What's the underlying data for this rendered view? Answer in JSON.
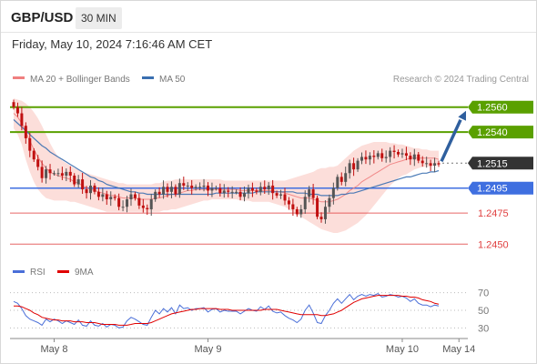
{
  "header": {
    "pair": "GBP/USD",
    "timeframe": "30 MIN"
  },
  "datetime": "Friday, May 10, 2024 7:16:46 AM CET",
  "colors": {
    "ma20": "#f08080",
    "ma50": "#3a6fb0",
    "resistance": "#5aa000",
    "pivot": "#3f6fe0",
    "support": "#e04040",
    "current": "#333333",
    "rsi": "#4a6fd8",
    "rsi_ma": "#e00000",
    "candle_up": "#555555",
    "candle_down": "#c01010",
    "band_fill": "#fbd8d4"
  },
  "chart_data": [
    {
      "type": "candlestick",
      "legend": {
        "items": [
          {
            "label": "MA 20 + Bollinger Bands",
            "color": "#f08080"
          },
          {
            "label": "MA 50",
            "color": "#3a6fb0"
          }
        ],
        "placement": "top-left"
      },
      "credit": "Research © 2024 Trading Central",
      "ylim": [
        1.244,
        1.257
      ],
      "levels": [
        {
          "label": "1.2560",
          "value": 1.256,
          "kind": "resistance"
        },
        {
          "label": "1.2540",
          "value": 1.254,
          "kind": "resistance"
        },
        {
          "label": "1.2515",
          "value": 1.2515,
          "kind": "current"
        },
        {
          "label": "1.2495",
          "value": 1.2495,
          "kind": "pivot"
        },
        {
          "label": "1.2475",
          "value": 1.2475,
          "kind": "support"
        },
        {
          "label": "1.2450",
          "value": 1.245,
          "kind": "support"
        }
      ],
      "x_ticks": [
        {
          "label": "May 8",
          "index": 10
        },
        {
          "label": "May 9",
          "index": 48
        },
        {
          "label": "May 10",
          "index": 96
        },
        {
          "label": "May 14",
          "index": 110
        }
      ],
      "close": [
        1.256,
        1.2555,
        1.2545,
        1.2535,
        1.2525,
        1.2518,
        1.2512,
        1.2503,
        1.251,
        1.2507,
        1.2507,
        1.2507,
        1.2505,
        1.2508,
        1.2505,
        1.2498,
        1.2502,
        1.2494,
        1.2491,
        1.2497,
        1.2492,
        1.2488,
        1.249,
        1.2486,
        1.2488,
        1.2487,
        1.248,
        1.248,
        1.2486,
        1.249,
        1.2487,
        1.2481,
        1.2479,
        1.2478,
        1.2486,
        1.2492,
        1.249,
        1.2496,
        1.2492,
        1.2496,
        1.249,
        1.2499,
        1.2497,
        1.2497,
        1.2495,
        1.2496,
        1.2496,
        1.2497,
        1.2493,
        1.2495,
        1.2495,
        1.2491,
        1.2493,
        1.2492,
        1.2492,
        1.2492,
        1.2488,
        1.2491,
        1.2495,
        1.2493,
        1.2492,
        1.2496,
        1.2494,
        1.2497,
        1.2491,
        1.2489,
        1.249,
        1.2485,
        1.2482,
        1.2478,
        1.2474,
        1.2478,
        1.2488,
        1.2494,
        1.2487,
        1.2472,
        1.247,
        1.248,
        1.2487,
        1.2495,
        1.2504,
        1.25,
        1.2507,
        1.2515,
        1.251,
        1.2517,
        1.252,
        1.2518,
        1.2521,
        1.252,
        1.2523,
        1.2519,
        1.252,
        1.2525,
        1.2524,
        1.2522,
        1.2523,
        1.2521,
        1.2518,
        1.2522,
        1.2517,
        1.2515,
        1.2515,
        1.2513,
        1.2515,
        1.2514
      ],
      "ma20": [
        1.2555,
        1.2552,
        1.2547,
        1.254,
        1.2533,
        1.2526,
        1.252,
        1.2515,
        1.2511,
        1.2508,
        1.2506,
        1.2505,
        1.2504,
        1.2503,
        1.2502,
        1.25,
        1.2499,
        1.2497,
        1.2495,
        1.2494,
        1.2493,
        1.2492,
        1.2491,
        1.249,
        1.2489,
        1.2489,
        1.2488,
        1.2487,
        1.2487,
        1.2487,
        1.2487,
        1.2486,
        1.2486,
        1.2486,
        1.2486,
        1.2487,
        1.2487,
        1.2488,
        1.2489,
        1.249,
        1.249,
        1.2491,
        1.2492,
        1.2493,
        1.2493,
        1.2494,
        1.2494,
        1.2494,
        1.2494,
        1.2494,
        1.2494,
        1.2494,
        1.2494,
        1.2494,
        1.2494,
        1.2494,
        1.2493,
        1.2493,
        1.2493,
        1.2493,
        1.2493,
        1.2493,
        1.2493,
        1.2493,
        1.2493,
        1.2492,
        1.2492,
        1.2491,
        1.249,
        1.2489,
        1.2488,
        1.2487,
        1.2487,
        1.2487,
        1.2486,
        1.2485,
        1.2484,
        1.2484,
        1.2484,
        1.2485,
        1.2486,
        1.2488,
        1.249,
        1.2493,
        1.2495,
        1.2497,
        1.25,
        1.2502,
        1.2504,
        1.2506,
        1.2508,
        1.251,
        1.2512,
        1.2514,
        1.2515,
        1.2516,
        1.2517,
        1.2518,
        1.2519,
        1.2519,
        1.2519,
        1.2519,
        1.2519,
        1.2519,
        1.2519,
        1.2518
      ],
      "bb_upper": [
        1.2567,
        1.2566,
        1.2565,
        1.2563,
        1.256,
        1.2556,
        1.2551,
        1.2545,
        1.2538,
        1.2531,
        1.2525,
        1.252,
        1.2517,
        1.2515,
        1.2513,
        1.2511,
        1.251,
        1.2508,
        1.2507,
        1.2506,
        1.2505,
        1.2504,
        1.2503,
        1.2502,
        1.2501,
        1.25,
        1.2499,
        1.2499,
        1.2498,
        1.2498,
        1.2498,
        1.2498,
        1.2498,
        1.2498,
        1.2498,
        1.2499,
        1.2499,
        1.25,
        1.2501,
        1.2501,
        1.2502,
        1.2502,
        1.2502,
        1.2502,
        1.2502,
        1.2502,
        1.2502,
        1.2502,
        1.2502,
        1.2502,
        1.2502,
        1.2502,
        1.2501,
        1.2501,
        1.2501,
        1.2501,
        1.2501,
        1.2501,
        1.2501,
        1.2501,
        1.2501,
        1.2501,
        1.2501,
        1.2501,
        1.2501,
        1.2501,
        1.2501,
        1.2501,
        1.2502,
        1.2503,
        1.2504,
        1.2505,
        1.2506,
        1.2507,
        1.2508,
        1.251,
        1.2511,
        1.2511,
        1.2512,
        1.2512,
        1.2513,
        1.2516,
        1.2519,
        1.2522,
        1.2525,
        1.2527,
        1.2529,
        1.253,
        1.2531,
        1.2532,
        1.2532,
        1.2532,
        1.2532,
        1.2531,
        1.2531,
        1.253,
        1.253,
        1.2529,
        1.2528,
        1.2527,
        1.2527,
        1.2526,
        1.2526,
        1.2525,
        1.2525,
        1.2525
      ],
      "bb_lower": [
        1.2543,
        1.2538,
        1.253,
        1.2518,
        1.2508,
        1.25,
        1.2494,
        1.249,
        1.2487,
        1.2486,
        1.2485,
        1.2485,
        1.2485,
        1.2485,
        1.2484,
        1.2484,
        1.2483,
        1.2482,
        1.2481,
        1.248,
        1.2479,
        1.2478,
        1.2477,
        1.2476,
        1.2476,
        1.2476,
        1.2476,
        1.2476,
        1.2476,
        1.2476,
        1.2476,
        1.2476,
        1.2476,
        1.2476,
        1.2476,
        1.2476,
        1.2476,
        1.2477,
        1.2477,
        1.2478,
        1.2478,
        1.2479,
        1.248,
        1.2481,
        1.2482,
        1.2483,
        1.2484,
        1.2485,
        1.2485,
        1.2486,
        1.2486,
        1.2486,
        1.2486,
        1.2486,
        1.2486,
        1.2486,
        1.2485,
        1.2485,
        1.2485,
        1.2484,
        1.2484,
        1.2484,
        1.2484,
        1.2484,
        1.2483,
        1.2482,
        1.2481,
        1.248,
        1.2478,
        1.2476,
        1.2474,
        1.2472,
        1.247,
        1.2468,
        1.2466,
        1.2464,
        1.2462,
        1.2461,
        1.246,
        1.2459,
        1.2459,
        1.246,
        1.2461,
        1.2463,
        1.2465,
        1.2467,
        1.247,
        1.2473,
        1.2477,
        1.2481,
        1.2485,
        1.2489,
        1.2493,
        1.2497,
        1.25,
        1.2503,
        1.2505,
        1.2506,
        1.2508,
        1.251,
        1.2511,
        1.2512,
        1.2512,
        1.2512,
        1.2513,
        1.2513
      ],
      "ma50": [
        1.255,
        1.2547,
        1.2544,
        1.2541,
        1.2538,
        1.2535,
        1.2532,
        1.2529,
        1.2527,
        1.2524,
        1.2522,
        1.252,
        1.2518,
        1.2516,
        1.2514,
        1.2512,
        1.251,
        1.2508,
        1.2506,
        1.2504,
        1.2503,
        1.2501,
        1.25,
        1.2498,
        1.2497,
        1.2496,
        1.2495,
        1.2494,
        1.2493,
        1.2492,
        1.2492,
        1.2491,
        1.2491,
        1.249,
        1.249,
        1.249,
        1.249,
        1.249,
        1.249,
        1.249,
        1.249,
        1.249,
        1.249,
        1.249,
        1.249,
        1.249,
        1.249,
        1.249,
        1.249,
        1.249,
        1.2491,
        1.2491,
        1.2491,
        1.2491,
        1.2491,
        1.2491,
        1.2491,
        1.2491,
        1.2491,
        1.2491,
        1.2492,
        1.2492,
        1.2492,
        1.2492,
        1.2492,
        1.2492,
        1.2492,
        1.2492,
        1.2492,
        1.2492,
        1.2491,
        1.2491,
        1.2491,
        1.249,
        1.249,
        1.249,
        1.2489,
        1.2489,
        1.2489,
        1.2489,
        1.2489,
        1.249,
        1.249,
        1.2491,
        1.2491,
        1.2492,
        1.2493,
        1.2494,
        1.2495,
        1.2496,
        1.2497,
        1.2498,
        1.2499,
        1.25,
        1.2501,
        1.2502,
        1.2503,
        1.2504,
        1.2504,
        1.2505,
        1.2506,
        1.2507,
        1.2507,
        1.2508,
        1.2508,
        1.2509
      ],
      "projection": {
        "from_value": 1.2515,
        "to_value": 1.256
      }
    },
    {
      "type": "line",
      "legend": {
        "items": [
          {
            "label": "RSI",
            "color": "#4a6fd8"
          },
          {
            "label": "9MA",
            "color": "#e00000"
          }
        ],
        "placement": "top-left"
      },
      "ylim": [
        20,
        80
      ],
      "y_ticks": [
        {
          "label": "70",
          "value": 70
        },
        {
          "label": "50",
          "value": 50
        },
        {
          "label": "30",
          "value": 30
        }
      ],
      "series": [
        {
          "name": "RSI",
          "values": [
            60,
            58,
            52,
            44,
            40,
            38,
            36,
            33,
            40,
            37,
            40,
            38,
            35,
            38,
            36,
            34,
            39,
            33,
            32,
            38,
            33,
            32,
            35,
            31,
            34,
            33,
            30,
            31,
            38,
            42,
            40,
            37,
            34,
            33,
            42,
            50,
            46,
            52,
            48,
            53,
            46,
            56,
            52,
            53,
            50,
            52,
            52,
            53,
            48,
            51,
            52,
            48,
            50,
            49,
            49,
            49,
            46,
            49,
            52,
            50,
            49,
            54,
            51,
            55,
            49,
            47,
            48,
            44,
            41,
            39,
            36,
            40,
            50,
            56,
            47,
            36,
            35,
            44,
            50,
            58,
            63,
            58,
            63,
            68,
            62,
            66,
            68,
            66,
            68,
            67,
            69,
            65,
            66,
            68,
            67,
            65,
            66,
            64,
            60,
            63,
            58,
            56,
            56,
            54,
            56,
            55
          ]
        },
        {
          "name": "9MA",
          "values": [
            55,
            55,
            54,
            52,
            50,
            47,
            45,
            42,
            41,
            40,
            39,
            39,
            38,
            38,
            38,
            37,
            37,
            37,
            36,
            36,
            36,
            35,
            34,
            34,
            34,
            34,
            33,
            33,
            33,
            34,
            35,
            35,
            35,
            35,
            36,
            38,
            40,
            42,
            44,
            46,
            47,
            48,
            49,
            50,
            51,
            51,
            52,
            52,
            52,
            52,
            52,
            51,
            51,
            51,
            50,
            50,
            50,
            50,
            50,
            50,
            50,
            50,
            51,
            51,
            51,
            51,
            50,
            49,
            48,
            47,
            46,
            45,
            45,
            45,
            45,
            45,
            44,
            44,
            45,
            46,
            48,
            50,
            53,
            56,
            59,
            61,
            63,
            64,
            65,
            66,
            67,
            67,
            67,
            67,
            67,
            67,
            66,
            66,
            65,
            65,
            64,
            62,
            61,
            60,
            58,
            57
          ]
        }
      ]
    }
  ]
}
